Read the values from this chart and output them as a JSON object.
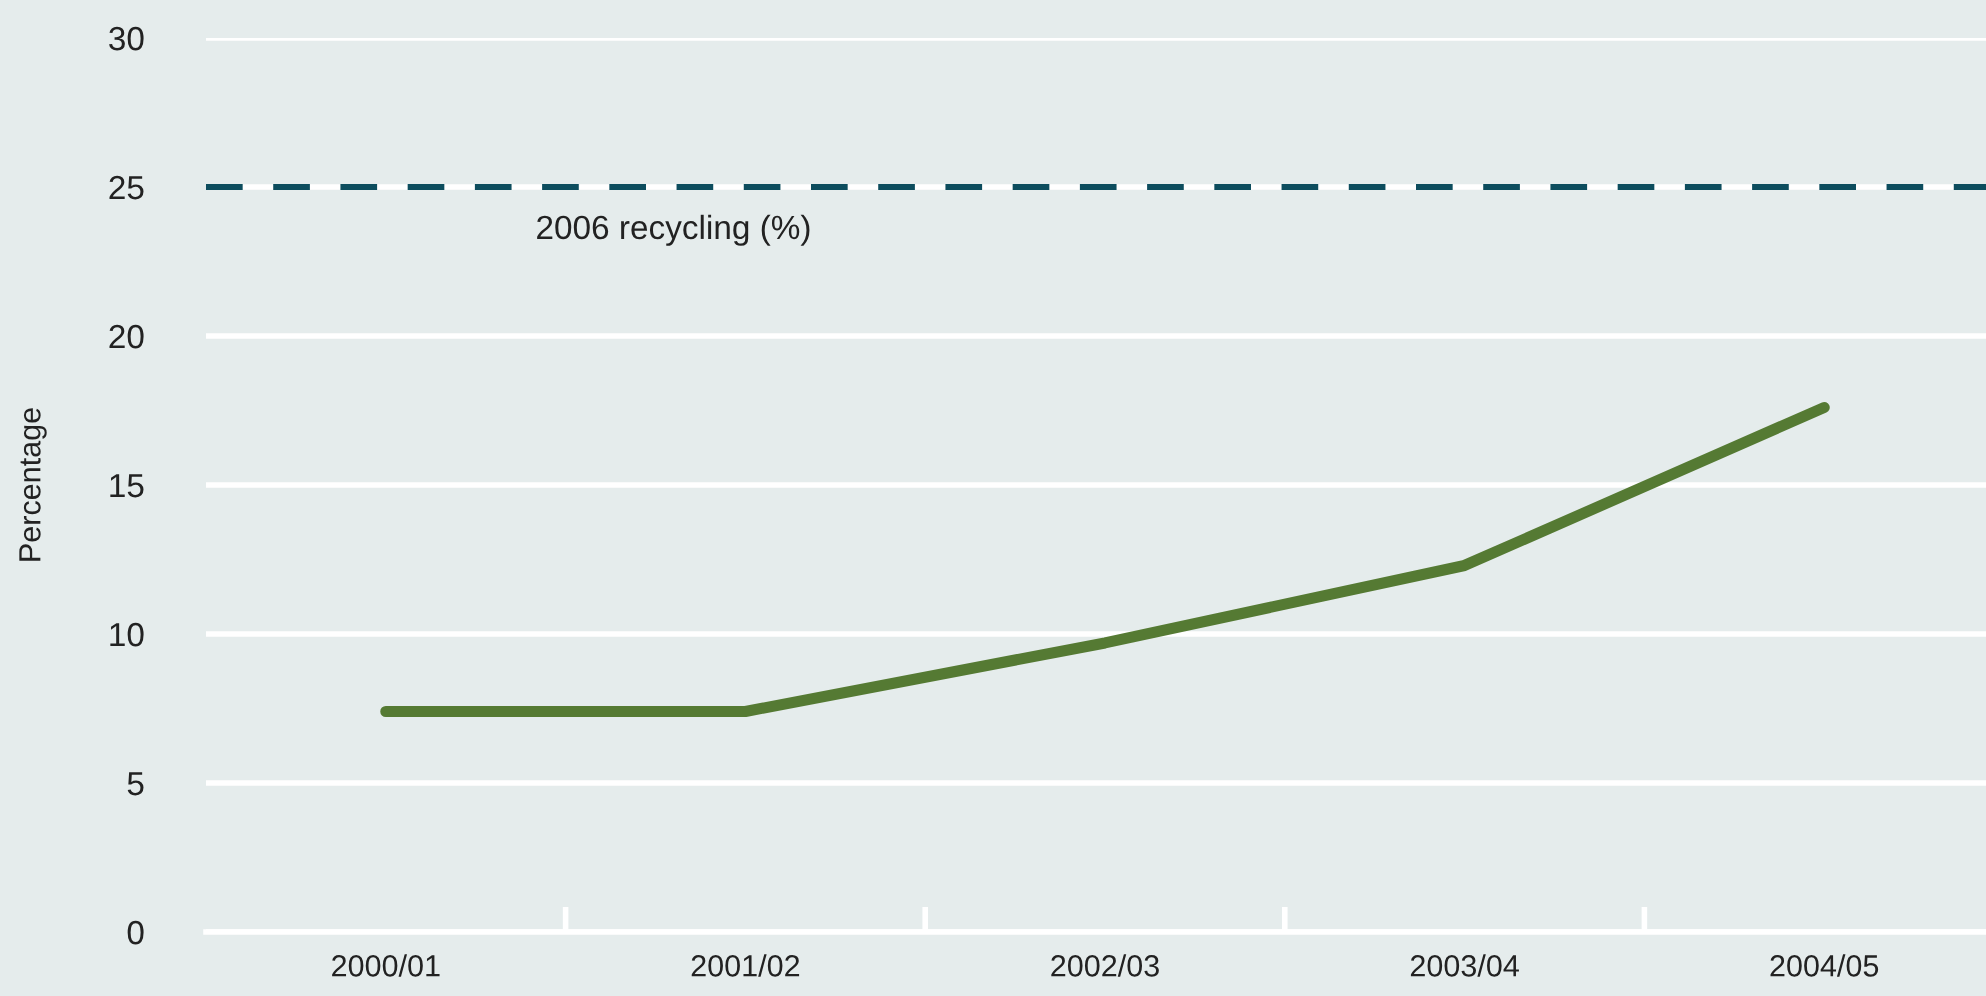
{
  "chart_data": {
    "type": "line",
    "ylabel": "Percentage",
    "categories": [
      "2000/01",
      "2001/02",
      "2002/03",
      "2003/04",
      "2004/05"
    ],
    "series": [
      {
        "color": "#557a33",
        "values": [
          7.4,
          7.4,
          9.7,
          12.3,
          17.6
        ]
      }
    ],
    "ylim": [
      0,
      30
    ],
    "yticks": [
      0,
      5,
      10,
      15,
      20,
      25,
      30
    ],
    "grid": "y",
    "line_style": "solid",
    "ref_lines": [
      {
        "axis": "y",
        "value": 25,
        "label": "2006 recycling (%)",
        "color": "#0d4d5e",
        "line_style": "dashed"
      }
    ]
  }
}
